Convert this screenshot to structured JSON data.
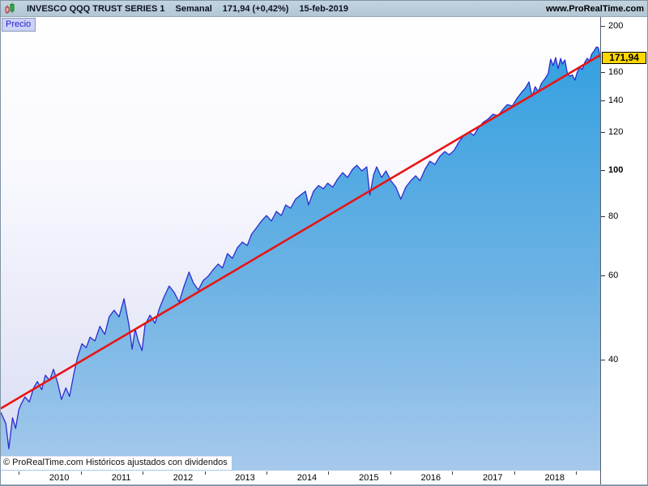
{
  "header": {
    "icon": "candlestick-icon",
    "instrument": "INVESCO QQQ TRUST SERIES 1",
    "timeframe": "Semanal",
    "quote": "171,94 (+0,42%)",
    "date": "15-feb-2019",
    "website": "www.ProRealTime.com"
  },
  "price_pane_tab": {
    "label": "Precio"
  },
  "footer": {
    "copyright": "© ProRealTime.com  Históricos ajustados con dividendos"
  },
  "last_price_badge": {
    "text": "171,94"
  },
  "colors": {
    "header_bg": "#b2c6d4",
    "area_fill_top": "#34a0e0",
    "area_fill_bottom": "#a6c9ec",
    "curve_stroke": "#2c2ccf",
    "trendline": "#e81414",
    "badge_bg": "#ffd700",
    "tab_bg": "#ccd1f6",
    "tab_text": "#2525c8"
  },
  "chart_data": {
    "type": "area",
    "title": "INVESCO QQQ TRUST SERIES 1 — Semanal — 15-feb-2019",
    "legend": "none",
    "grid": false,
    "last_price": 171.94,
    "y_axis": {
      "position": "right",
      "scale": "log",
      "range": [
        23.4,
        209.6
      ],
      "ticks": [
        200,
        160,
        140,
        120,
        100,
        80,
        60,
        40
      ],
      "bold_tick": 100
    },
    "x_axis": {
      "type": "time-years",
      "range": [
        2009.71,
        2019.39
      ],
      "year_ticks": [
        2010,
        2011,
        2012,
        2013,
        2014,
        2015,
        2016,
        2017,
        2018,
        2019
      ],
      "year_labels": [
        "2010",
        "2011",
        "2012",
        "2013",
        "2014",
        "2015",
        "2016",
        "2017",
        "2018"
      ]
    },
    "trendline": {
      "from": [
        2009.71,
        31.6
      ],
      "to": [
        2019.39,
        174.4
      ]
    },
    "series": [
      {
        "name": "Precio",
        "points": [
          [
            2009.71,
            31.0
          ],
          [
            2009.79,
            29.4
          ],
          [
            2009.84,
            26.0
          ],
          [
            2009.9,
            30.2
          ],
          [
            2009.95,
            28.7
          ],
          [
            2010.0,
            31.4
          ],
          [
            2010.04,
            32.3
          ],
          [
            2010.1,
            33.4
          ],
          [
            2010.17,
            32.6
          ],
          [
            2010.24,
            34.9
          ],
          [
            2010.3,
            36.0
          ],
          [
            2010.37,
            34.6
          ],
          [
            2010.43,
            37.1
          ],
          [
            2010.5,
            36.2
          ],
          [
            2010.56,
            38.2
          ],
          [
            2010.63,
            35.7
          ],
          [
            2010.69,
            33.0
          ],
          [
            2010.76,
            34.9
          ],
          [
            2010.82,
            33.5
          ],
          [
            2010.89,
            37.4
          ],
          [
            2010.95,
            40.5
          ],
          [
            2011.02,
            43.2
          ],
          [
            2011.09,
            42.4
          ],
          [
            2011.15,
            44.6
          ],
          [
            2011.23,
            43.8
          ],
          [
            2011.31,
            47.0
          ],
          [
            2011.39,
            45.2
          ],
          [
            2011.46,
            49.2
          ],
          [
            2011.54,
            50.8
          ],
          [
            2011.62,
            49.2
          ],
          [
            2011.7,
            53.7
          ],
          [
            2011.78,
            47.3
          ],
          [
            2011.83,
            42.1
          ],
          [
            2011.88,
            46.4
          ],
          [
            2011.93,
            43.8
          ],
          [
            2011.99,
            41.8
          ],
          [
            2012.04,
            47.3
          ],
          [
            2012.12,
            49.6
          ],
          [
            2012.2,
            47.7
          ],
          [
            2012.27,
            51.2
          ],
          [
            2012.35,
            54.3
          ],
          [
            2012.43,
            57.1
          ],
          [
            2012.51,
            55.4
          ],
          [
            2012.59,
            52.8
          ],
          [
            2012.67,
            57.1
          ],
          [
            2012.75,
            61.1
          ],
          [
            2012.82,
            58.0
          ],
          [
            2012.9,
            56.0
          ],
          [
            2012.98,
            58.7
          ],
          [
            2013.06,
            59.9
          ],
          [
            2013.14,
            61.8
          ],
          [
            2013.22,
            63.5
          ],
          [
            2013.29,
            62.3
          ],
          [
            2013.37,
            66.8
          ],
          [
            2013.45,
            65.3
          ],
          [
            2013.53,
            68.7
          ],
          [
            2013.61,
            70.6
          ],
          [
            2013.69,
            69.5
          ],
          [
            2013.76,
            73.4
          ],
          [
            2013.84,
            75.7
          ],
          [
            2013.92,
            78.2
          ],
          [
            2014.0,
            80.3
          ],
          [
            2014.08,
            78.2
          ],
          [
            2014.16,
            81.9
          ],
          [
            2014.24,
            80.3
          ],
          [
            2014.31,
            84.5
          ],
          [
            2014.39,
            83.2
          ],
          [
            2014.47,
            86.9
          ],
          [
            2014.55,
            88.6
          ],
          [
            2014.63,
            90.3
          ],
          [
            2014.68,
            84.5
          ],
          [
            2014.76,
            90.3
          ],
          [
            2014.84,
            92.8
          ],
          [
            2014.92,
            91.4
          ],
          [
            2014.99,
            93.9
          ],
          [
            2015.07,
            92.1
          ],
          [
            2015.15,
            95.8
          ],
          [
            2015.23,
            98.8
          ],
          [
            2015.31,
            96.5
          ],
          [
            2015.39,
            100.4
          ],
          [
            2015.46,
            102.4
          ],
          [
            2015.54,
            99.6
          ],
          [
            2015.62,
            101.6
          ],
          [
            2015.67,
            88.6
          ],
          [
            2015.73,
            97.7
          ],
          [
            2015.78,
            101.6
          ],
          [
            2015.86,
            96.5
          ],
          [
            2015.93,
            99.6
          ],
          [
            2016.01,
            95.0
          ],
          [
            2016.09,
            92.1
          ],
          [
            2016.17,
            86.9
          ],
          [
            2016.25,
            92.1
          ],
          [
            2016.33,
            95.0
          ],
          [
            2016.41,
            97.3
          ],
          [
            2016.48,
            95.0
          ],
          [
            2016.56,
            100.4
          ],
          [
            2016.64,
            104.4
          ],
          [
            2016.72,
            102.8
          ],
          [
            2016.8,
            106.9
          ],
          [
            2016.88,
            109.4
          ],
          [
            2016.95,
            107.7
          ],
          [
            2017.03,
            110.0
          ],
          [
            2017.11,
            114.7
          ],
          [
            2017.19,
            118.3
          ],
          [
            2017.27,
            120.2
          ],
          [
            2017.35,
            118.3
          ],
          [
            2017.42,
            122.6
          ],
          [
            2017.5,
            126.0
          ],
          [
            2017.58,
            128.0
          ],
          [
            2017.66,
            131.0
          ],
          [
            2017.74,
            130.0
          ],
          [
            2017.82,
            134.2
          ],
          [
            2017.89,
            137.3
          ],
          [
            2017.97,
            136.3
          ],
          [
            2018.05,
            141.7
          ],
          [
            2018.13,
            146.2
          ],
          [
            2018.18,
            148.5
          ],
          [
            2018.24,
            153.2
          ],
          [
            2018.29,
            142.8
          ],
          [
            2018.34,
            149.7
          ],
          [
            2018.39,
            146.2
          ],
          [
            2018.44,
            152.0
          ],
          [
            2018.5,
            155.7
          ],
          [
            2018.55,
            159.4
          ],
          [
            2018.59,
            171.0
          ],
          [
            2018.63,
            165.7
          ],
          [
            2018.67,
            172.3
          ],
          [
            2018.71,
            163.2
          ],
          [
            2018.75,
            171.6
          ],
          [
            2018.78,
            167.0
          ],
          [
            2018.82,
            170.3
          ],
          [
            2018.86,
            159.4
          ],
          [
            2018.9,
            157.5
          ],
          [
            2018.94,
            158.5
          ],
          [
            2018.98,
            154.5
          ],
          [
            2019.02,
            160.6
          ],
          [
            2019.06,
            164.5
          ],
          [
            2019.1,
            162.6
          ],
          [
            2019.14,
            168.3
          ],
          [
            2019.18,
            171.6
          ],
          [
            2019.22,
            169.6
          ],
          [
            2019.25,
            175.0
          ],
          [
            2019.29,
            177.8
          ],
          [
            2019.33,
            181.3
          ],
          [
            2019.36,
            180.6
          ],
          [
            2019.39,
            171.94
          ]
        ]
      }
    ]
  }
}
